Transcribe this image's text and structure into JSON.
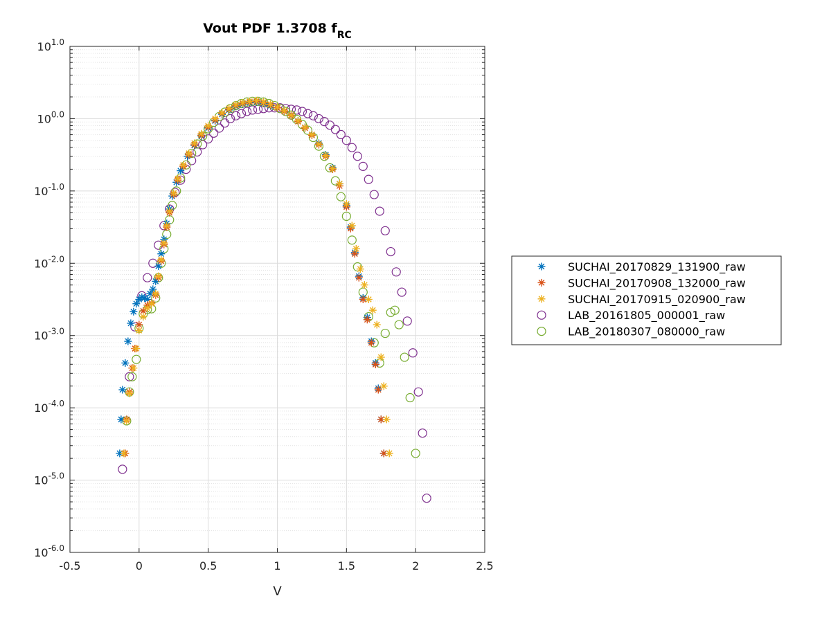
{
  "chart_data": {
    "type": "scatter",
    "title": "Vout PDF 1.3708 f",
    "title_subscript": "RC",
    "xlabel": "V",
    "ylabel": "",
    "xlim": [
      -0.5,
      2.5
    ],
    "ylim_log10": [
      -6,
      1
    ],
    "yscale": "log",
    "grid": true,
    "minor_grid": true,
    "legend_position": "outside-right",
    "x_tick_labels": [
      "-0.5",
      "0",
      "0.5",
      "1",
      "1.5",
      "2",
      "2.5"
    ],
    "y_tick_labels": [
      "10",
      "10",
      "10",
      "10",
      "10",
      "10",
      "10",
      "10"
    ],
    "y_tick_exponents": [
      "1.0",
      "0.0",
      "-1.0",
      "-2.0",
      "-3.0",
      "-4.0",
      "-5.0",
      "-6.0"
    ],
    "series": [
      {
        "name": "SUCHAI_20170829_131900_raw",
        "marker": "asterisk",
        "color": "#0072BD",
        "points": [
          [
            -0.14,
            -4.63
          ],
          [
            -0.13,
            -4.16
          ],
          [
            -0.12,
            -3.75
          ],
          [
            -0.1,
            -3.38
          ],
          [
            -0.08,
            -3.08
          ],
          [
            -0.06,
            -2.83
          ],
          [
            -0.04,
            -2.67
          ],
          [
            -0.02,
            -2.56
          ],
          [
            0.0,
            -2.5
          ],
          [
            0.02,
            -2.47
          ],
          [
            0.04,
            -2.48
          ],
          [
            0.06,
            -2.5
          ],
          [
            0.08,
            -2.42
          ],
          [
            0.1,
            -2.36
          ],
          [
            0.12,
            -2.25
          ],
          [
            0.14,
            -2.04
          ],
          [
            0.16,
            -1.87
          ],
          [
            0.18,
            -1.67
          ],
          [
            0.2,
            -1.45
          ],
          [
            0.22,
            -1.25
          ],
          [
            0.24,
            -1.07
          ],
          [
            0.27,
            -0.88
          ],
          [
            0.3,
            -0.72
          ],
          [
            0.35,
            -0.52
          ],
          [
            0.4,
            -0.37
          ],
          [
            0.45,
            -0.24
          ],
          [
            0.5,
            -0.13
          ],
          [
            0.55,
            -0.03
          ],
          [
            0.6,
            0.06
          ],
          [
            0.65,
            0.12
          ],
          [
            0.7,
            0.17
          ],
          [
            0.75,
            0.2
          ],
          [
            0.8,
            0.22
          ],
          [
            0.85,
            0.23
          ],
          [
            0.9,
            0.21
          ],
          [
            0.95,
            0.18
          ],
          [
            1.0,
            0.15
          ],
          [
            1.05,
            0.1
          ],
          [
            1.1,
            0.04
          ],
          [
            1.15,
            -0.03
          ],
          [
            1.2,
            -0.12
          ],
          [
            1.25,
            -0.22
          ],
          [
            1.3,
            -0.34
          ],
          [
            1.35,
            -0.5
          ],
          [
            1.4,
            -0.68
          ],
          [
            1.45,
            -0.9
          ],
          [
            1.5,
            -1.2
          ],
          [
            1.53,
            -1.5
          ],
          [
            1.56,
            -1.85
          ],
          [
            1.59,
            -2.18
          ],
          [
            1.62,
            -2.48
          ],
          [
            1.65,
            -2.75
          ],
          [
            1.68,
            -3.08
          ],
          [
            1.71,
            -3.38
          ],
          [
            1.73,
            -3.73
          ],
          [
            1.75,
            -4.16
          ],
          [
            1.77,
            -4.63
          ]
        ]
      },
      {
        "name": "SUCHAI_20170908_132000_raw",
        "marker": "asterisk",
        "color": "#D95319",
        "points": [
          [
            -0.1,
            -4.63
          ],
          [
            -0.09,
            -4.16
          ],
          [
            -0.07,
            -3.78
          ],
          [
            -0.05,
            -3.45
          ],
          [
            -0.03,
            -3.18
          ],
          [
            0.0,
            -2.85
          ],
          [
            0.03,
            -2.66
          ],
          [
            0.06,
            -2.58
          ],
          [
            0.09,
            -2.55
          ],
          [
            0.12,
            -2.44
          ],
          [
            0.14,
            -2.2
          ],
          [
            0.16,
            -1.97
          ],
          [
            0.18,
            -1.74
          ],
          [
            0.2,
            -1.5
          ],
          [
            0.22,
            -1.3
          ],
          [
            0.25,
            -1.05
          ],
          [
            0.28,
            -0.85
          ],
          [
            0.32,
            -0.66
          ],
          [
            0.36,
            -0.5
          ],
          [
            0.4,
            -0.36
          ],
          [
            0.45,
            -0.23
          ],
          [
            0.5,
            -0.12
          ],
          [
            0.55,
            -0.02
          ],
          [
            0.6,
            0.07
          ],
          [
            0.65,
            0.13
          ],
          [
            0.7,
            0.18
          ],
          [
            0.75,
            0.21
          ],
          [
            0.8,
            0.23
          ],
          [
            0.85,
            0.24
          ],
          [
            0.9,
            0.22
          ],
          [
            0.95,
            0.19
          ],
          [
            1.0,
            0.15
          ],
          [
            1.05,
            0.1
          ],
          [
            1.1,
            0.04
          ],
          [
            1.15,
            -0.04
          ],
          [
            1.2,
            -0.13
          ],
          [
            1.25,
            -0.23
          ],
          [
            1.3,
            -0.36
          ],
          [
            1.35,
            -0.52
          ],
          [
            1.4,
            -0.7
          ],
          [
            1.45,
            -0.93
          ],
          [
            1.5,
            -1.22
          ],
          [
            1.53,
            -1.52
          ],
          [
            1.56,
            -1.87
          ],
          [
            1.59,
            -2.2
          ],
          [
            1.62,
            -2.5
          ],
          [
            1.65,
            -2.78
          ],
          [
            1.68,
            -3.1
          ],
          [
            1.71,
            -3.4
          ],
          [
            1.73,
            -3.75
          ],
          [
            1.75,
            -4.16
          ],
          [
            1.77,
            -4.63
          ]
        ]
      },
      {
        "name": "SUCHAI_20170915_020900_raw",
        "marker": "asterisk",
        "color": "#EDB120",
        "points": [
          [
            -0.11,
            -4.63
          ],
          [
            -0.09,
            -4.18
          ],
          [
            -0.07,
            -3.8
          ],
          [
            -0.04,
            -3.45
          ],
          [
            -0.02,
            -3.18
          ],
          [
            0.0,
            -2.93
          ],
          [
            0.03,
            -2.74
          ],
          [
            0.06,
            -2.62
          ],
          [
            0.09,
            -2.56
          ],
          [
            0.12,
            -2.42
          ],
          [
            0.14,
            -2.18
          ],
          [
            0.16,
            -1.95
          ],
          [
            0.18,
            -1.72
          ],
          [
            0.2,
            -1.48
          ],
          [
            0.22,
            -1.28
          ],
          [
            0.25,
            -1.03
          ],
          [
            0.28,
            -0.83
          ],
          [
            0.32,
            -0.64
          ],
          [
            0.36,
            -0.48
          ],
          [
            0.4,
            -0.34
          ],
          [
            0.45,
            -0.21
          ],
          [
            0.5,
            -0.1
          ],
          [
            0.55,
            0.0
          ],
          [
            0.6,
            0.08
          ],
          [
            0.65,
            0.14
          ],
          [
            0.7,
            0.19
          ],
          [
            0.75,
            0.22
          ],
          [
            0.8,
            0.24
          ],
          [
            0.85,
            0.25
          ],
          [
            0.9,
            0.23
          ],
          [
            0.95,
            0.2
          ],
          [
            1.0,
            0.16
          ],
          [
            1.05,
            0.11
          ],
          [
            1.1,
            0.05
          ],
          [
            1.15,
            -0.03
          ],
          [
            1.2,
            -0.12
          ],
          [
            1.25,
            -0.22
          ],
          [
            1.3,
            -0.35
          ],
          [
            1.35,
            -0.51
          ],
          [
            1.4,
            -0.69
          ],
          [
            1.45,
            -0.9
          ],
          [
            1.5,
            -1.18
          ],
          [
            1.54,
            -1.48
          ],
          [
            1.57,
            -1.8
          ],
          [
            1.6,
            -2.08
          ],
          [
            1.63,
            -2.3
          ],
          [
            1.66,
            -2.5
          ],
          [
            1.69,
            -2.65
          ],
          [
            1.72,
            -2.85
          ],
          [
            1.75,
            -3.3
          ],
          [
            1.77,
            -3.7
          ],
          [
            1.79,
            -4.16
          ],
          [
            1.81,
            -4.63
          ]
        ]
      },
      {
        "name": "LAB_20161805_000001_raw",
        "marker": "circle",
        "color": "#7E2F8E",
        "points": [
          [
            -0.12,
            -4.85
          ],
          [
            -0.07,
            -3.57
          ],
          [
            -0.03,
            -2.88
          ],
          [
            0.02,
            -2.45
          ],
          [
            0.06,
            -2.2
          ],
          [
            0.1,
            -2.0
          ],
          [
            0.14,
            -1.75
          ],
          [
            0.18,
            -1.48
          ],
          [
            0.22,
            -1.25
          ],
          [
            0.26,
            -1.02
          ],
          [
            0.3,
            -0.85
          ],
          [
            0.34,
            -0.7
          ],
          [
            0.38,
            -0.58
          ],
          [
            0.42,
            -0.46
          ],
          [
            0.46,
            -0.36
          ],
          [
            0.5,
            -0.28
          ],
          [
            0.54,
            -0.2
          ],
          [
            0.58,
            -0.13
          ],
          [
            0.62,
            -0.06
          ],
          [
            0.66,
            0.0
          ],
          [
            0.7,
            0.04
          ],
          [
            0.74,
            0.07
          ],
          [
            0.78,
            0.1
          ],
          [
            0.82,
            0.12
          ],
          [
            0.86,
            0.13
          ],
          [
            0.9,
            0.14
          ],
          [
            0.94,
            0.15
          ],
          [
            0.98,
            0.15
          ],
          [
            1.02,
            0.15
          ],
          [
            1.06,
            0.14
          ],
          [
            1.1,
            0.13
          ],
          [
            1.14,
            0.12
          ],
          [
            1.18,
            0.1
          ],
          [
            1.22,
            0.07
          ],
          [
            1.26,
            0.04
          ],
          [
            1.3,
            0.0
          ],
          [
            1.34,
            -0.04
          ],
          [
            1.38,
            -0.09
          ],
          [
            1.42,
            -0.15
          ],
          [
            1.46,
            -0.22
          ],
          [
            1.5,
            -0.3
          ],
          [
            1.54,
            -0.4
          ],
          [
            1.58,
            -0.52
          ],
          [
            1.62,
            -0.66
          ],
          [
            1.66,
            -0.84
          ],
          [
            1.7,
            -1.05
          ],
          [
            1.74,
            -1.28
          ],
          [
            1.78,
            -1.55
          ],
          [
            1.82,
            -1.84
          ],
          [
            1.86,
            -2.12
          ],
          [
            1.9,
            -2.4
          ],
          [
            1.94,
            -2.8
          ],
          [
            1.98,
            -3.24
          ],
          [
            2.02,
            -3.78
          ],
          [
            2.05,
            -4.35
          ],
          [
            2.08,
            -5.25
          ]
        ]
      },
      {
        "name": "LAB_20180307_080000_raw",
        "marker": "circle",
        "color": "#77AC30",
        "points": [
          [
            -0.09,
            -4.18
          ],
          [
            -0.07,
            -3.78
          ],
          [
            -0.05,
            -3.57
          ],
          [
            -0.02,
            -3.33
          ],
          [
            0.0,
            -2.9
          ],
          [
            0.03,
            -2.7
          ],
          [
            0.06,
            -2.64
          ],
          [
            0.09,
            -2.63
          ],
          [
            0.12,
            -2.48
          ],
          [
            0.14,
            -2.2
          ],
          [
            0.16,
            -2.0
          ],
          [
            0.18,
            -1.8
          ],
          [
            0.2,
            -1.6
          ],
          [
            0.22,
            -1.4
          ],
          [
            0.24,
            -1.2
          ],
          [
            0.27,
            -1.0
          ],
          [
            0.3,
            -0.82
          ],
          [
            0.34,
            -0.64
          ],
          [
            0.38,
            -0.48
          ],
          [
            0.42,
            -0.35
          ],
          [
            0.46,
            -0.24
          ],
          [
            0.5,
            -0.14
          ],
          [
            0.54,
            -0.05
          ],
          [
            0.58,
            0.03
          ],
          [
            0.62,
            0.09
          ],
          [
            0.66,
            0.14
          ],
          [
            0.7,
            0.18
          ],
          [
            0.74,
            0.21
          ],
          [
            0.78,
            0.23
          ],
          [
            0.82,
            0.24
          ],
          [
            0.86,
            0.24
          ],
          [
            0.9,
            0.23
          ],
          [
            0.94,
            0.21
          ],
          [
            0.98,
            0.18
          ],
          [
            1.02,
            0.14
          ],
          [
            1.06,
            0.1
          ],
          [
            1.1,
            0.05
          ],
          [
            1.14,
            -0.01
          ],
          [
            1.18,
            -0.08
          ],
          [
            1.22,
            -0.16
          ],
          [
            1.26,
            -0.26
          ],
          [
            1.3,
            -0.38
          ],
          [
            1.34,
            -0.52
          ],
          [
            1.38,
            -0.68
          ],
          [
            1.42,
            -0.86
          ],
          [
            1.46,
            -1.08
          ],
          [
            1.5,
            -1.35
          ],
          [
            1.54,
            -1.68
          ],
          [
            1.58,
            -2.05
          ],
          [
            1.62,
            -2.4
          ],
          [
            1.66,
            -2.74
          ],
          [
            1.7,
            -3.1
          ],
          [
            1.74,
            -3.38
          ],
          [
            1.78,
            -2.97
          ],
          [
            1.82,
            -2.68
          ],
          [
            1.85,
            -2.65
          ],
          [
            1.88,
            -2.85
          ],
          [
            1.92,
            -3.3
          ],
          [
            1.96,
            -3.86
          ],
          [
            2.0,
            -4.63
          ]
        ]
      }
    ]
  }
}
